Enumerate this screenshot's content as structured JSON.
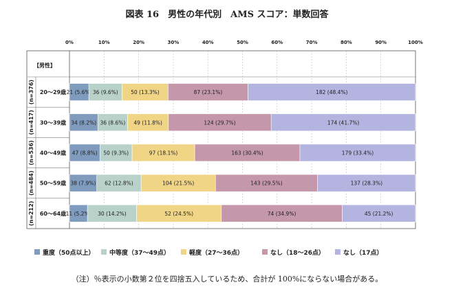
{
  "title": "図表 16　男性の年代別　AMS スコア：単数回答",
  "note": "（注）％表示の小数第２位を四捨五入しているため、合計が 100%にならない場合がある。",
  "chart_data": {
    "type": "bar",
    "orientation": "horizontal",
    "stacked": true,
    "normalized": true,
    "title": "図表 16　男性の年代別　AMS スコア：単数回答",
    "group_header": "【男性】",
    "xlim": [
      0,
      100
    ],
    "x_ticks": [
      "0%",
      "10%",
      "20%",
      "30%",
      "40%",
      "50%",
      "60%",
      "70%",
      "80%",
      "90%",
      "100%"
    ],
    "legend_position": "bottom",
    "grid": true,
    "categories": [
      "20～29歳",
      "30～39歳",
      "40～49歳",
      "50～59歳",
      "60～64歳"
    ],
    "n_labels": [
      "(n=376)",
      "(n=417)",
      "(n=536)",
      "(n=484)",
      "(n=212)"
    ],
    "series": [
      {
        "name": "重度（50点以上）",
        "color": "#7f9bbd",
        "values": [
          5.6,
          8.2,
          8.8,
          7.9,
          5.2
        ],
        "labels": [
          "21 (5.6%)",
          "34 (8.2%)",
          "47 (8.8%)",
          "38 (7.9%)",
          "11 (5.2%)"
        ]
      },
      {
        "name": "中等度（37～49点）",
        "color": "#b8d2c9",
        "values": [
          9.6,
          8.6,
          9.3,
          12.8,
          14.2
        ],
        "labels": [
          "36 (9.6%)",
          "36 (8.6%)",
          "50 (9.3%)",
          "62 (12.8%)",
          "30 (14.2%)"
        ]
      },
      {
        "name": "軽度（27～36点）",
        "color": "#f1d587",
        "values": [
          13.3,
          11.8,
          18.1,
          21.5,
          24.5
        ],
        "labels": [
          "50 (13.3%)",
          "49 (11.8%)",
          "97 (18.1%)",
          "104 (21.5%)",
          "52 (24.5%)"
        ]
      },
      {
        "name": "なし（18～26点）",
        "color": "#c497ab",
        "values": [
          23.1,
          29.7,
          30.4,
          29.5,
          34.9
        ],
        "labels": [
          "87 (23.1%)",
          "124 (29.7%)",
          "163 (30.4%)",
          "143 (29.5%)",
          "74 (34.9%)"
        ]
      },
      {
        "name": "なし（17点）",
        "color": "#b3b4df",
        "values": [
          48.4,
          41.7,
          33.4,
          28.3,
          21.2
        ],
        "labels": [
          "182 (48.4%)",
          "174 (41.7%)",
          "179 (33.4%)",
          "137 (28.3%)",
          "45 (21.2%)"
        ]
      }
    ]
  }
}
